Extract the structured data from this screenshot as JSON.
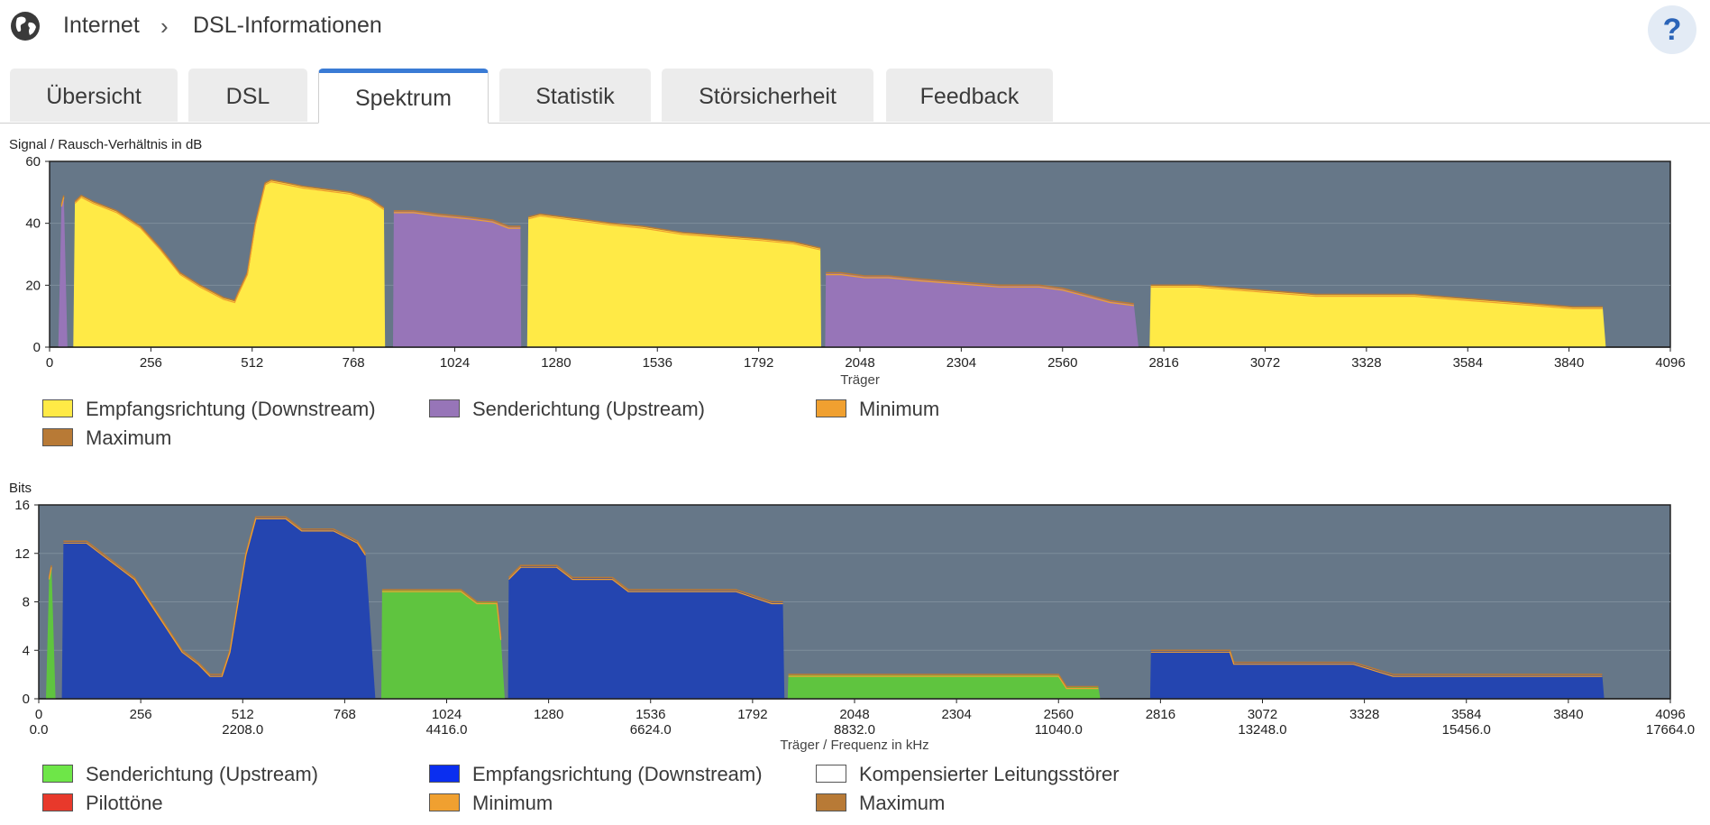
{
  "header": {
    "breadcrumb": [
      "Internet",
      "DSL-Informationen"
    ],
    "separator": "›",
    "help_label": "?"
  },
  "tabs": [
    {
      "label": "Übersicht",
      "active": false
    },
    {
      "label": "DSL",
      "active": false
    },
    {
      "label": "Spektrum",
      "active": true
    },
    {
      "label": "Statistik",
      "active": false
    },
    {
      "label": "Störsicherheit",
      "active": false
    },
    {
      "label": "Feedback",
      "active": false
    }
  ],
  "colors": {
    "plot_bg": "#667788",
    "downstream_snr": "#ffea46",
    "upstream_snr": "#9775b8",
    "bits_upstream": "#5fc43f",
    "bits_downstream": "#2445b0",
    "min_line": "#f0a030",
    "max_line": "#b87a36",
    "pilot": "#e8392b"
  },
  "chart_data": [
    {
      "type": "area",
      "title": "Signal / Rausch-Verhältnis in dB",
      "xlabel": "Träger",
      "ylabel": "",
      "xlim": [
        0,
        4096
      ],
      "ylim": [
        0,
        60
      ],
      "xticks": [
        0,
        256,
        512,
        768,
        1024,
        1280,
        1536,
        1792,
        2048,
        2304,
        2560,
        2816,
        3072,
        3328,
        3584,
        3840,
        4096
      ],
      "yticks": [
        0,
        20,
        40,
        60
      ],
      "legend": [
        {
          "label": "Empfangsrichtung (Downstream)",
          "color": "#ffea46"
        },
        {
          "label": "Senderichtung (Upstream)",
          "color": "#9775b8"
        },
        {
          "label": "Minimum",
          "color": "#f0a030"
        },
        {
          "label": "Maximum",
          "color": "#b87a36"
        }
      ],
      "series": [
        {
          "name": "Senderichtung (Upstream)",
          "color": "#9775b8",
          "points": [
            [
              22,
              0
            ],
            [
              30,
              46
            ],
            [
              36,
              49
            ],
            [
              45,
              0
            ]
          ]
        },
        {
          "name": "Empfangsrichtung (Downstream)",
          "color": "#ffea46",
          "points": [
            [
              60,
              0
            ],
            [
              64,
              47
            ],
            [
              80,
              49
            ],
            [
              110,
              47
            ],
            [
              170,
              44
            ],
            [
              230,
              39
            ],
            [
              280,
              32
            ],
            [
              330,
              24
            ],
            [
              380,
              20
            ],
            [
              440,
              16
            ],
            [
              468,
              15
            ],
            [
              478,
              18
            ],
            [
              500,
              24
            ],
            [
              520,
              40
            ],
            [
              545,
              53
            ],
            [
              560,
              54
            ],
            [
              600,
              53
            ],
            [
              640,
              52
            ],
            [
              700,
              51
            ],
            [
              760,
              50
            ],
            [
              810,
              48
            ],
            [
              845,
              45
            ],
            [
              848,
              0
            ]
          ]
        },
        {
          "name": "Senderichtung (Upstream)",
          "color": "#9775b8",
          "points": [
            [
              868,
              0
            ],
            [
              870,
              44
            ],
            [
              920,
              44
            ],
            [
              980,
              43
            ],
            [
              1060,
              42
            ],
            [
              1120,
              41
            ],
            [
              1160,
              39
            ],
            [
              1190,
              39
            ],
            [
              1192,
              0
            ]
          ]
        },
        {
          "name": "Empfangsrichtung (Downstream)",
          "color": "#ffea46",
          "points": [
            [
              1207,
              0
            ],
            [
              1210,
              42
            ],
            [
              1240,
              43
            ],
            [
              1300,
              42
            ],
            [
              1360,
              41
            ],
            [
              1420,
              40
            ],
            [
              1500,
              39
            ],
            [
              1600,
              37
            ],
            [
              1700,
              36
            ],
            [
              1800,
              35
            ],
            [
              1880,
              34
            ],
            [
              1948,
              32
            ],
            [
              1950,
              0
            ]
          ]
        },
        {
          "name": "Senderichtung (Upstream)",
          "color": "#9775b8",
          "points": [
            [
              1960,
              0
            ],
            [
              1962,
              24
            ],
            [
              2000,
              24
            ],
            [
              2060,
              23
            ],
            [
              2120,
              23
            ],
            [
              2200,
              22
            ],
            [
              2300,
              21
            ],
            [
              2400,
              20
            ],
            [
              2500,
              20
            ],
            [
              2560,
              19
            ],
            [
              2620,
              17
            ],
            [
              2680,
              15
            ],
            [
              2740,
              14
            ],
            [
              2752,
              0
            ]
          ]
        },
        {
          "name": "Empfangsrichtung (Downstream)",
          "color": "#ffea46",
          "points": [
            [
              2780,
              0
            ],
            [
              2783,
              20
            ],
            [
              2900,
              20
            ],
            [
              3000,
              19
            ],
            [
              3100,
              18
            ],
            [
              3200,
              17
            ],
            [
              3300,
              17
            ],
            [
              3450,
              17
            ],
            [
              3550,
              16
            ],
            [
              3650,
              15
            ],
            [
              3750,
              14
            ],
            [
              3850,
              13
            ],
            [
              3925,
              13
            ],
            [
              3933,
              0
            ]
          ]
        }
      ]
    },
    {
      "type": "area",
      "title": "Bits",
      "xlabel": "Träger / Frequenz in kHz",
      "ylabel": "",
      "xlim": [
        0,
        4096
      ],
      "ylim": [
        0,
        16
      ],
      "xticks": [
        0,
        256,
        512,
        768,
        1024,
        1280,
        1536,
        1792,
        2048,
        2304,
        2560,
        2816,
        3072,
        3328,
        3584,
        3840,
        4096
      ],
      "freq_ticks": [
        [
          "0.0",
          0
        ],
        [
          "2208.0",
          512
        ],
        [
          "4416.0",
          1024
        ],
        [
          "6624.0",
          1536
        ],
        [
          "8832.0",
          2048
        ],
        [
          "11040.0",
          2560
        ],
        [
          "13248.0",
          3072
        ],
        [
          "15456.0",
          3584
        ],
        [
          "17664.0",
          4096
        ]
      ],
      "yticks": [
        0,
        4,
        8,
        12,
        16
      ],
      "legend": [
        {
          "label": "Senderichtung (Upstream)",
          "color": "#6ee648"
        },
        {
          "label": "Empfangsrichtung (Downstream)",
          "color": "#0a2ef0"
        },
        {
          "label": "Kompensierter Leitungsstörer",
          "color": "#ffffff"
        },
        {
          "label": "Pilottöne",
          "color": "#e8392b"
        },
        {
          "label": "Minimum",
          "color": "#f0a030"
        },
        {
          "label": "Maximum",
          "color": "#b87a36"
        }
      ],
      "series": [
        {
          "name": "Senderichtung (Upstream)",
          "color": "#5fc43f",
          "points": [
            [
              18,
              0
            ],
            [
              26,
              10
            ],
            [
              32,
              11
            ],
            [
              42,
              0
            ]
          ]
        },
        {
          "name": "Empfangsrichtung (Downstream)",
          "color": "#2445b0",
          "points": [
            [
              58,
              0
            ],
            [
              62,
              13
            ],
            [
              120,
              13
            ],
            [
              160,
              12
            ],
            [
              200,
              11
            ],
            [
              240,
              10
            ],
            [
              280,
              8
            ],
            [
              320,
              6
            ],
            [
              360,
              4
            ],
            [
              400,
              3
            ],
            [
              430,
              2
            ],
            [
              460,
              2
            ],
            [
              480,
              4
            ],
            [
              500,
              8
            ],
            [
              520,
              12
            ],
            [
              545,
              15
            ],
            [
              620,
              15
            ],
            [
              660,
              14
            ],
            [
              740,
              14
            ],
            [
              800,
              13
            ],
            [
              820,
              12
            ],
            [
              845,
              0
            ]
          ]
        },
        {
          "name": "Senderichtung (Upstream)",
          "color": "#5fc43f",
          "points": [
            [
              860,
              0
            ],
            [
              862,
              9
            ],
            [
              920,
              9
            ],
            [
              1000,
              9
            ],
            [
              1060,
              9
            ],
            [
              1100,
              8
            ],
            [
              1150,
              8
            ],
            [
              1160,
              5
            ],
            [
              1170,
              0
            ]
          ]
        },
        {
          "name": "Empfangsrichtung (Downstream)",
          "color": "#2445b0",
          "points": [
            [
              1178,
              0
            ],
            [
              1180,
              10
            ],
            [
              1210,
              11
            ],
            [
              1300,
              11
            ],
            [
              1340,
              10
            ],
            [
              1440,
              10
            ],
            [
              1480,
              9
            ],
            [
              1600,
              9
            ],
            [
              1750,
              9
            ],
            [
              1840,
              8
            ],
            [
              1868,
              8
            ],
            [
              1872,
              0
            ]
          ]
        },
        {
          "name": "Senderichtung (Upstream)",
          "color": "#5fc43f",
          "points": [
            [
              1880,
              0
            ],
            [
              1882,
              2
            ],
            [
              2000,
              2
            ],
            [
              2200,
              2
            ],
            [
              2400,
              2
            ],
            [
              2560,
              2
            ],
            [
              2580,
              1
            ],
            [
              2660,
              1
            ],
            [
              2665,
              0
            ]
          ]
        },
        {
          "name": "Empfangsrichtung (Downstream)",
          "color": "#2445b0",
          "points": [
            [
              2790,
              0
            ],
            [
              2792,
              4
            ],
            [
              2900,
              4
            ],
            [
              2990,
              4
            ],
            [
              3000,
              3
            ],
            [
              3100,
              3
            ],
            [
              3200,
              3
            ],
            [
              3300,
              3
            ],
            [
              3400,
              2
            ],
            [
              3600,
              2
            ],
            [
              3800,
              2
            ],
            [
              3925,
              2
            ],
            [
              3930,
              0
            ]
          ]
        }
      ]
    }
  ]
}
